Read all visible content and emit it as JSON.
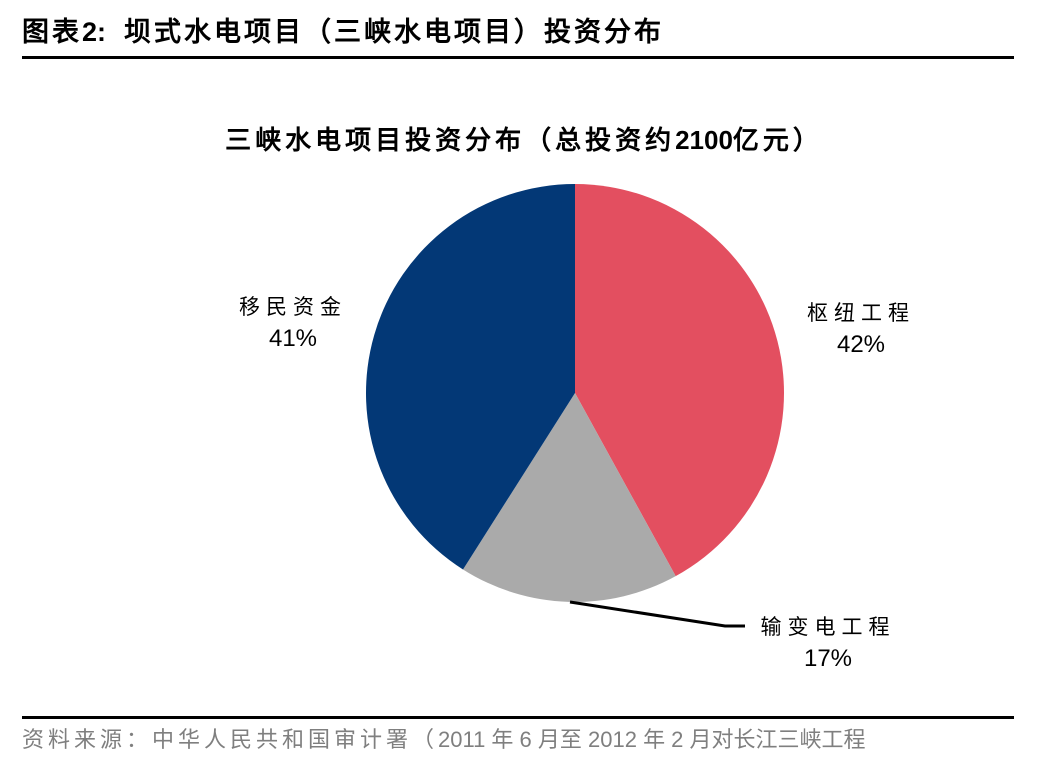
{
  "figure": {
    "prefix": "图表",
    "number": "2:",
    "title": "坝式水电项目（三峡水电项目）投资分布"
  },
  "source_note": {
    "label": "资料来源：中华人民共和国审计署（",
    "text": "2011 年 6 月至 2012 年 2 月对长江三峡工程"
  },
  "colors": {
    "navy": "#033876",
    "red": "#E34F60",
    "gray": "#AAAAAA",
    "rule": "#000000",
    "source_text": "#7F7F7F"
  },
  "chart_data": {
    "type": "pie",
    "title": "三峡水电项目投资分布（总投资约2100亿元）",
    "title_main": "三峡水电项目投资分布（总投资约",
    "title_amount": "2100",
    "title_unit": "亿元）",
    "start_angle_deg": 0,
    "direction": "clockwise",
    "categories": [
      "枢纽工程",
      "输变电工程",
      "移民资金"
    ],
    "values": [
      42,
      17,
      41
    ],
    "unit": "%",
    "colors": [
      "#E34F60",
      "#AAAAAA",
      "#033876"
    ],
    "labels": [
      {
        "name": "枢纽工程",
        "pct": "42%"
      },
      {
        "name": "输变电工程",
        "pct": "17%"
      },
      {
        "name": "移民资金",
        "pct": "41%"
      }
    ],
    "legend": "none (data labels outside slices)",
    "total_investment": "约2100亿元"
  }
}
